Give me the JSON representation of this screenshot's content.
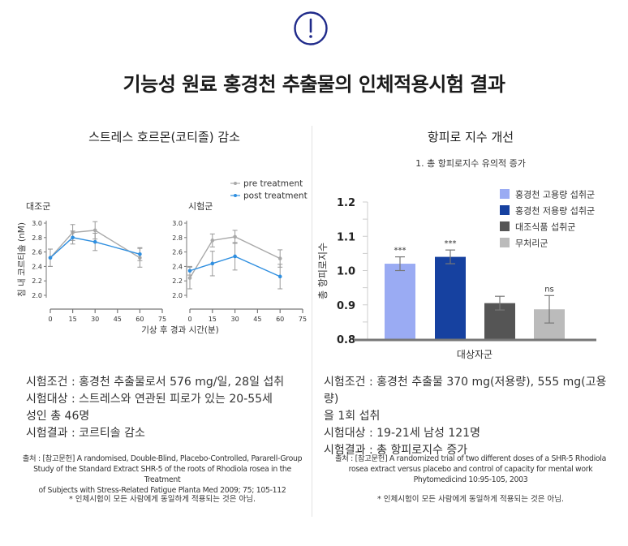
{
  "header": {
    "icon": "exclamation-circle-icon",
    "title": "기능성 원료 홍경천 추출물의 인체적용시험 결과",
    "accent_color": "#1f2a8a"
  },
  "left_panel": {
    "title": "스트레스 호르몬(코티졸) 감소",
    "description": [
      "시험조건 : 홍경천 추출물로서 576 mg/일, 28일 섭취",
      "시험대상 : 스트레스와 연관된 피로가 있는 20-55세",
      "성인 총 46명",
      "시험결과 : 코르티솔 감소"
    ],
    "source": [
      "출처 : [참고문헌] A randomised, Double-Blind, Placebo-Controlled, Pararell-Group",
      "Study of the Standard Extract SHR-5 of the roots of Rhodiola rosea in the Treatment",
      "of Subjects with Stress-Related Fatigue Planta Med 2009; 75; 105-112"
    ],
    "note": "* 인체시험이 모든 사람에게 동일하게 적용되는 것은 아님."
  },
  "right_panel": {
    "title": "항피로 지수 개선",
    "subtitle": "1.   총 항피로지수 유의적 증가",
    "description": [
      "시험조건 : 홍경천 추출물 370 mg(저용량), 555 mg(고용량)",
      "을 1회 섭취",
      "시험대상 : 19-21세 남성 121명",
      "시험결과 : 총 항피로지수 증가"
    ],
    "source": [
      "출처 : [참고문헌] A randomized trial of two different doses of a SHR-5 Rhodiola",
      "rosea extract versus placebo and control of capacity for mental work",
      "Phytomedicind 10:95-105, 2003"
    ],
    "note": "* 인체시험이 모든 사람에게 동일하게 적용되는 것은 아님."
  },
  "chart_data": [
    {
      "type": "line",
      "title": "대조군",
      "xlabel": "기상 후 경과 시간(분)",
      "ylabel": "침 내 코르티솔 (nM)",
      "x": [
        0,
        15,
        30,
        60
      ],
      "xlim": [
        0,
        75
      ],
      "xticks": [
        "0",
        "15",
        "30",
        "45",
        "60",
        "75"
      ],
      "ylim": [
        2.0,
        3.0
      ],
      "yticks": [
        "2.0",
        "2.2",
        "2.4",
        "2.6",
        "2.8",
        "3.0"
      ],
      "legend": "top-right",
      "series": [
        {
          "name": "pre treatment",
          "color": "#a9a9a9",
          "values": [
            2.52,
            2.87,
            2.9,
            2.52
          ],
          "errors": [
            0.12,
            0.11,
            0.12,
            0.13
          ]
        },
        {
          "name": "post treatment",
          "color": "#2f8fe0",
          "values": [
            2.52,
            2.8,
            2.74,
            2.57
          ],
          "errors": [
            0.12,
            0.09,
            0.12,
            0.09
          ]
        }
      ]
    },
    {
      "type": "line",
      "title": "시험군",
      "xlabel": "기상 후 경과 시간(분)",
      "x": [
        0,
        15,
        30,
        60
      ],
      "xlim": [
        0,
        75
      ],
      "xticks": [
        "0",
        "15",
        "30",
        "45",
        "60",
        "75"
      ],
      "ylim": [
        2.0,
        3.0
      ],
      "yticks": [
        "2.0",
        "2.2",
        "2.4",
        "2.6",
        "2.8",
        "3.0"
      ],
      "series": [
        {
          "name": "pre treatment",
          "color": "#a9a9a9",
          "values": [
            2.24,
            2.76,
            2.81,
            2.51
          ],
          "errors": [
            0.15,
            0.09,
            0.09,
            0.12
          ]
        },
        {
          "name": "post treatment",
          "color": "#2f8fe0",
          "values": [
            2.34,
            2.44,
            2.54,
            2.26
          ],
          "errors": [
            0.06,
            0.17,
            0.19,
            0.17
          ]
        }
      ]
    },
    {
      "type": "bar",
      "xlabel": "대상자군",
      "ylabel": "총 항피로지수",
      "ylim": [
        0.8,
        1.2
      ],
      "yticks": [
        "0.8",
        "0.9",
        "1.0",
        "1.1",
        "1.2"
      ],
      "legend": "top-right",
      "categories": [
        "홍경천 고용량 섭취군",
        "홍경천 저용량 섭취군",
        "대조식품 섭취군",
        "무처리군"
      ],
      "colors": [
        "#9aabf3",
        "#1641a0",
        "#555555",
        "#bbbbbb"
      ],
      "values": [
        1.02,
        1.04,
        0.905,
        0.887
      ],
      "errors": [
        0.02,
        0.02,
        0.02,
        0.04
      ],
      "error_style": [
        "both",
        "both",
        "both",
        "both"
      ],
      "annotations": [
        "***",
        "***",
        "",
        "ns"
      ]
    }
  ]
}
